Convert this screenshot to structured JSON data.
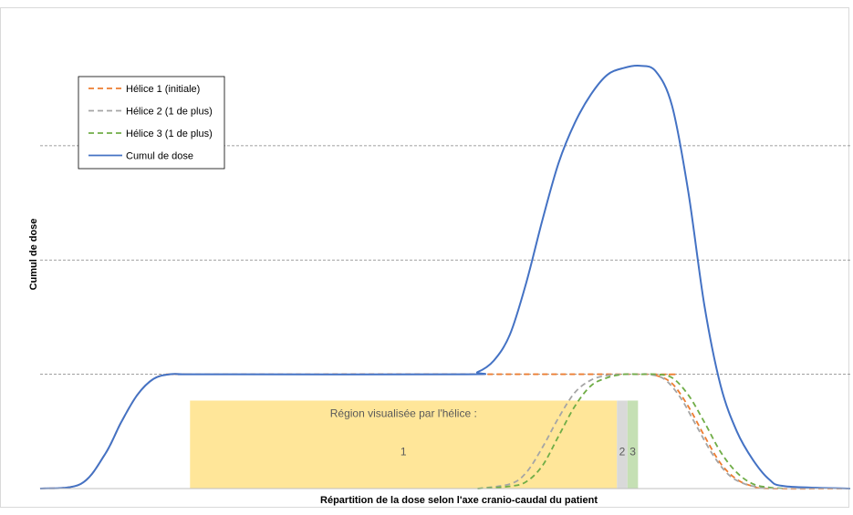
{
  "chart_data": {
    "type": "line",
    "title": "",
    "xlabel": "Répartition de la dose selon l'axe cranio-caudal  du patient",
    "ylabel": "Cumul de dose",
    "xlim": [
      0,
      100
    ],
    "ylim": [
      0,
      4.1
    ],
    "grid": {
      "horizontal": true,
      "lines": [
        1,
        2,
        3
      ],
      "style": "dashed"
    },
    "legend_position": "top-left",
    "series": [
      {
        "name": "Hélice 1 (initiale)",
        "style": "dashed",
        "color": "#ED7D31",
        "x": [
          0,
          5,
          8,
          10,
          12,
          14,
          16,
          18,
          20,
          74,
          76,
          78,
          80,
          82,
          84,
          86,
          88,
          90,
          100
        ],
        "y": [
          0,
          0.04,
          0.3,
          0.58,
          0.82,
          0.96,
          1.0,
          1.0,
          1.0,
          1.0,
          0.99,
          0.92,
          0.72,
          0.46,
          0.22,
          0.08,
          0.02,
          0.0,
          0.0
        ]
      },
      {
        "name": "Hélice 2 (1 de plus)",
        "style": "dashed",
        "color": "#A5A5A5",
        "x": [
          54,
          58,
          60,
          62,
          64,
          66,
          68,
          70,
          72,
          74,
          75,
          77,
          79,
          81,
          83,
          85,
          87,
          89,
          91
        ],
        "y": [
          0.0,
          0.04,
          0.14,
          0.36,
          0.62,
          0.84,
          0.95,
          0.99,
          1.0,
          1.0,
          1.0,
          0.96,
          0.8,
          0.55,
          0.3,
          0.12,
          0.04,
          0.01,
          0.0
        ]
      },
      {
        "name": "Hélice 3 (1 de plus)",
        "style": "dashed",
        "color": "#70AD47",
        "x": [
          54,
          58,
          60,
          62,
          64,
          66,
          68,
          70,
          72,
          74,
          76,
          78,
          80,
          82,
          84,
          86,
          88,
          90,
          92
        ],
        "y": [
          0.0,
          0.02,
          0.06,
          0.2,
          0.46,
          0.72,
          0.9,
          0.97,
          1.0,
          1.0,
          1.0,
          0.97,
          0.82,
          0.58,
          0.32,
          0.14,
          0.04,
          0.01,
          0.0
        ]
      },
      {
        "name": "Cumul de dose",
        "style": "solid",
        "color": "#4472C4",
        "x": [
          0,
          5,
          8,
          10,
          12,
          14,
          16,
          18,
          20,
          52,
          54,
          56,
          58,
          60,
          62,
          64,
          66,
          68,
          70,
          72,
          74,
          76,
          78,
          80,
          82,
          84,
          86,
          88,
          90,
          92,
          100
        ],
        "y": [
          0,
          0.04,
          0.3,
          0.58,
          0.82,
          0.96,
          1.0,
          1.0,
          1.0,
          1.0,
          1.02,
          1.12,
          1.35,
          1.8,
          2.35,
          2.85,
          3.2,
          3.45,
          3.62,
          3.68,
          3.7,
          3.65,
          3.35,
          2.6,
          1.6,
          0.9,
          0.5,
          0.25,
          0.08,
          0.02,
          0.0
        ]
      }
    ],
    "regions": {
      "title": "Région visualisée par l'hélice :",
      "items": [
        {
          "label": "1",
          "x0": 18.5,
          "x1": 71.2,
          "color": "#FFE699"
        },
        {
          "label": "2",
          "x0": 71.2,
          "x1": 72.5,
          "color": "#D9D9D9"
        },
        {
          "label": "3",
          "x0": 72.5,
          "x1": 73.8,
          "color": "#C5E0B4"
        }
      ]
    }
  }
}
